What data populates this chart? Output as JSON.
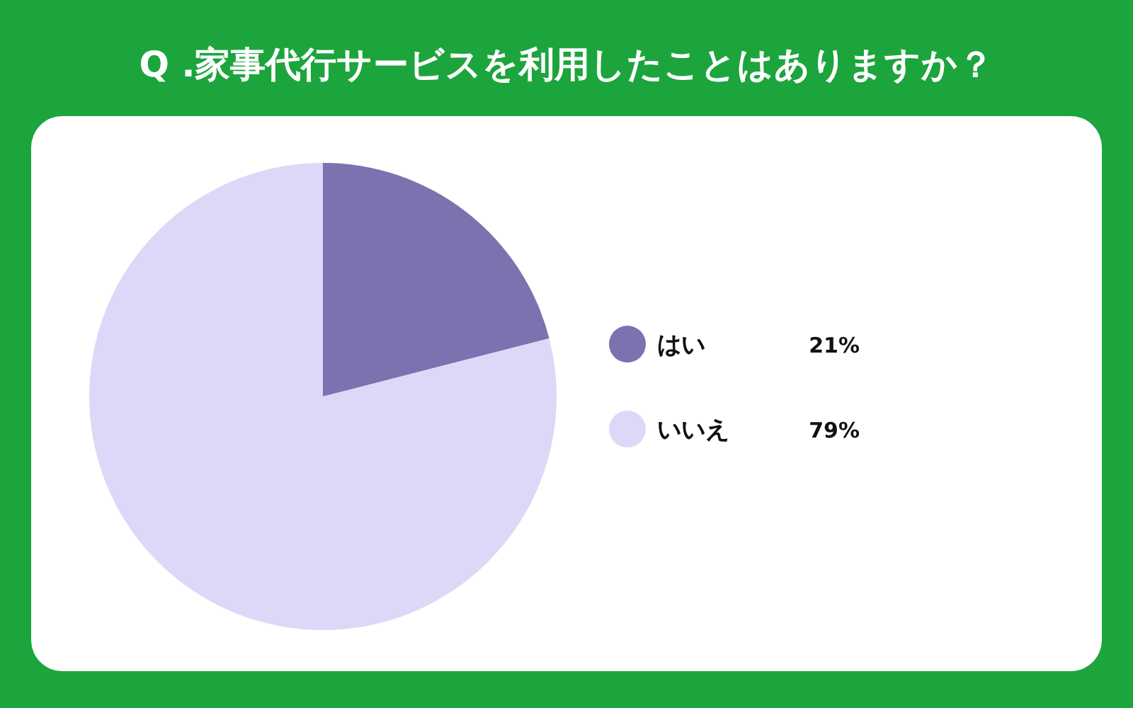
{
  "chart_data": {
    "type": "pie",
    "title": "Q .家事代行サービスを利用したことはありますか？",
    "categories": [
      "はい",
      "いいえ"
    ],
    "values": [
      21,
      79
    ],
    "colors": [
      "#7b72b0",
      "#dcd8f8"
    ],
    "value_labels": [
      "21%",
      "79%"
    ],
    "legend": "right"
  }
}
